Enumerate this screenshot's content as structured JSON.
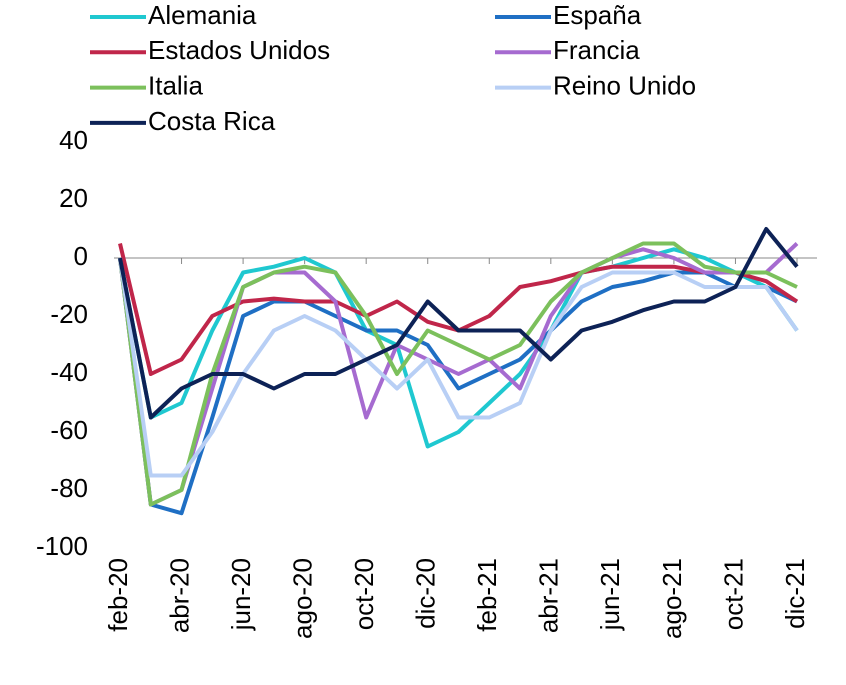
{
  "chart_data": {
    "type": "line",
    "categories": [
      "feb-20",
      null,
      "abr-20",
      null,
      "jun-20",
      null,
      "ago-20",
      null,
      "oct-20",
      null,
      "dic-20",
      null,
      "feb-21",
      null,
      "abr-21",
      null,
      "jun-21",
      null,
      "ago-21",
      null,
      "oct-21",
      null,
      "dic-21"
    ],
    "series": [
      {
        "name": "Alemania",
        "color": "#1fc8d0",
        "values": [
          0,
          -55,
          -50,
          -25,
          -5,
          -3,
          0,
          -5,
          -25,
          -30,
          -65,
          -60,
          -50,
          -40,
          -25,
          -5,
          -3,
          0,
          3,
          0,
          -5,
          -10,
          -25
        ]
      },
      {
        "name": "España",
        "color": "#1f6fc4",
        "values": [
          0,
          -85,
          -88,
          -55,
          -20,
          -15,
          -15,
          -20,
          -25,
          -25,
          -30,
          -45,
          -40,
          -35,
          -25,
          -15,
          -10,
          -8,
          -5,
          -5,
          -10,
          -10,
          -15
        ]
      },
      {
        "name": "Estados Unidos",
        "color": "#c0264a",
        "values": [
          5,
          -40,
          -35,
          -20,
          -15,
          -14,
          -15,
          -15,
          -20,
          -15,
          -22,
          -25,
          -20,
          -10,
          -8,
          -5,
          -3,
          -3,
          -3,
          -5,
          -5,
          -8,
          -15
        ]
      },
      {
        "name": "Francia",
        "color": "#a66bd0",
        "values": [
          0,
          -85,
          -80,
          -45,
          -10,
          -5,
          -5,
          -15,
          -55,
          -30,
          -35,
          -40,
          -35,
          -45,
          -20,
          -5,
          0,
          3,
          0,
          -5,
          -5,
          -5,
          5
        ]
      },
      {
        "name": "Italia",
        "color": "#7cc05c",
        "values": [
          0,
          -85,
          -80,
          -40,
          -10,
          -5,
          -3,
          -5,
          -20,
          -40,
          -25,
          -30,
          -35,
          -30,
          -15,
          -5,
          0,
          5,
          5,
          -3,
          -5,
          -5,
          -10
        ]
      },
      {
        "name": "Reino Unido",
        "color": "#b8cff5",
        "values": [
          0,
          -75,
          -75,
          -60,
          -40,
          -25,
          -20,
          -25,
          -35,
          -45,
          -35,
          -55,
          -55,
          -50,
          -25,
          -10,
          -5,
          -5,
          -5,
          -10,
          -10,
          -10,
          -25
        ]
      },
      {
        "name": "Costa Rica",
        "color": "#0d2256",
        "values": [
          0,
          -55,
          -45,
          -40,
          -40,
          -45,
          -40,
          -40,
          -35,
          -30,
          -15,
          -25,
          -25,
          -25,
          -35,
          -25,
          -22,
          -18,
          -15,
          -15,
          -10,
          10,
          -3
        ]
      }
    ],
    "ylim": [
      -100,
      40
    ],
    "yticks": [
      -100,
      -80,
      -60,
      -40,
      -20,
      0,
      20,
      40
    ]
  }
}
